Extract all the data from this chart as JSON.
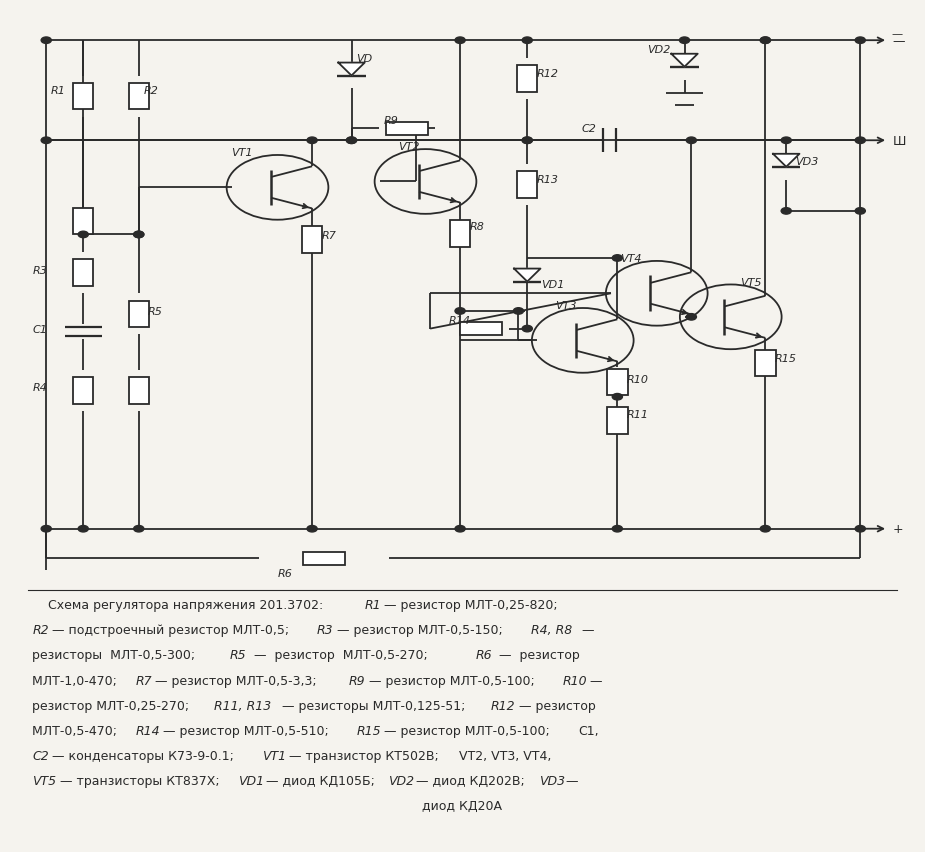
{
  "bg_color": "#f5f3ee",
  "line_color": "#2a2a2a",
  "text_color": "#2a2a2a",
  "figsize": [
    9.25,
    8.53
  ],
  "caption_lines": [
    [
      "    Схема регулятора напряжения 201.3702: ",
      false,
      "R1",
      true,
      " — резистор МЛТ-0,25-820;"
    ],
    [
      "R2",
      true,
      " — подстроечный резистор МЛТ-0,5; ",
      false,
      "R3",
      true,
      " — резистор МЛТ-0,5-150; ",
      false,
      "R4, R8",
      true,
      " —"
    ],
    [
      "резисторы  МЛТ-0,5-300;  ",
      false,
      "R5",
      true,
      "  —  резистор  МЛТ-0,5-270;  ",
      false,
      "R6",
      true,
      "  —  резистор"
    ],
    [
      "МЛТ-1,0-470; ",
      false,
      "R7",
      true,
      " — резистор МЛТ-0,5-3,3; ",
      false,
      "R9",
      true,
      " — резистор МЛТ-0,5-100; ",
      false,
      "R10",
      true,
      " —"
    ],
    [
      "резистор МЛТ-0,25-270; ",
      false,
      "R11, R13",
      true,
      " — резисторы МЛТ-0,125-51; ",
      false,
      "R12",
      true,
      " — резистор"
    ],
    [
      "МЛТ-0,5-470; ",
      false,
      "R14",
      true,
      " — резистор МЛТ-0,5-510; ",
      false,
      "R15",
      true,
      " — резистор МЛТ-0,5-100; ",
      false,
      "C1,"
    ],
    [
      "C2",
      true,
      " — конденсаторы К73-9-0.1; ",
      false,
      "VT1",
      true,
      " — транзистор КТ502В; ",
      false,
      "VT2, VT3, VT4,"
    ],
    [
      "VT5",
      true,
      " — транзисторы КТ837Х; ",
      false,
      "VD1",
      true,
      " — диод КД105Б; ",
      false,
      "VD2",
      true,
      " — диод КД202В; ",
      false,
      "VD3",
      true,
      " —"
    ],
    [
      "диод КД20А",
      false
    ]
  ]
}
